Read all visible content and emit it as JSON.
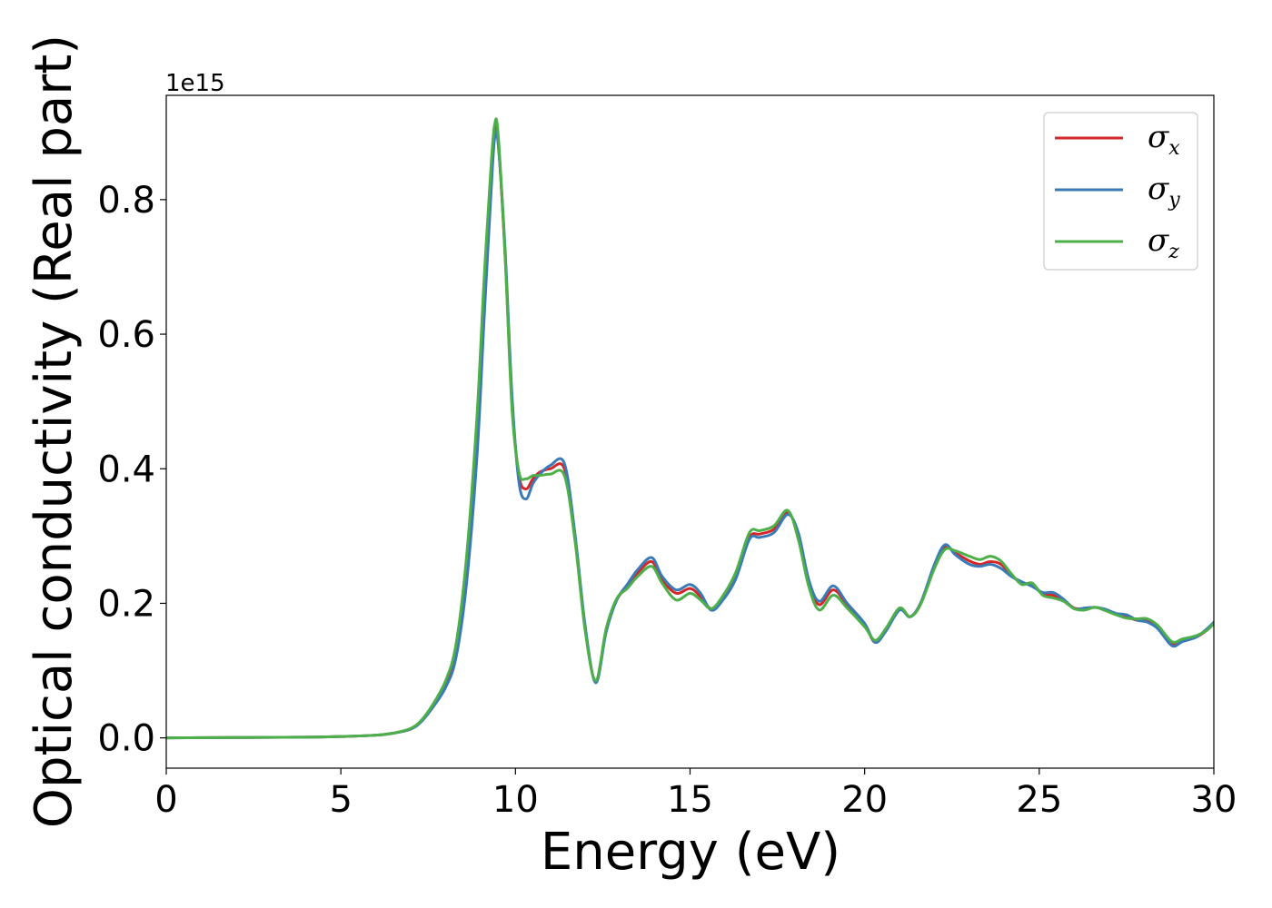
{
  "chart_data": {
    "type": "line",
    "xlabel": "Energy (eV)",
    "ylabel": "Optical conductivity (Real part)",
    "y_offset_label": "1e15",
    "xlim": [
      0,
      30
    ],
    "ylim": [
      -0.045,
      0.955
    ],
    "x_ticks": [
      0,
      5,
      10,
      15,
      20,
      25,
      30
    ],
    "x_tick_labels": [
      "0",
      "5",
      "10",
      "15",
      "20",
      "25",
      "30"
    ],
    "y_ticks": [
      0.0,
      0.2,
      0.4,
      0.6,
      0.8
    ],
    "y_tick_labels": [
      "0.0",
      "0.2",
      "0.4",
      "0.6",
      "0.8"
    ],
    "grid": false,
    "legend_position": "top-right",
    "x": [
      0,
      2,
      4,
      5,
      6,
      6.5,
      7,
      7.3,
      7.6,
      8,
      8.3,
      8.6,
      8.9,
      9.1,
      9.3,
      9.4,
      9.5,
      9.7,
      9.9,
      10.1,
      10.3,
      10.5,
      10.7,
      11,
      11.4,
      11.7,
      12,
      12.3,
      12.6,
      12.9,
      13.2,
      13.5,
      13.9,
      14.2,
      14.6,
      15,
      15.3,
      15.6,
      15.9,
      16.3,
      16.7,
      17,
      17.4,
      17.8,
      18.1,
      18.4,
      18.7,
      19.1,
      19.5,
      20,
      20.3,
      20.6,
      21,
      21.3,
      21.6,
      22,
      22.3,
      22.6,
      23,
      23.3,
      23.6,
      23.9,
      24.2,
      24.5,
      24.8,
      25.1,
      25.4,
      25.7,
      26,
      26.3,
      26.6,
      26.9,
      27.2,
      27.5,
      27.8,
      28.1,
      28.4,
      28.8,
      29.1,
      29.5,
      29.8,
      30
    ],
    "series": [
      {
        "name": "σx",
        "label_base": "σ",
        "label_sub": "x",
        "color": "#d62728",
        "values": [
          0,
          0.0005,
          0.001,
          0.002,
          0.004,
          0.007,
          0.013,
          0.025,
          0.045,
          0.08,
          0.13,
          0.25,
          0.45,
          0.65,
          0.83,
          0.9,
          0.89,
          0.72,
          0.5,
          0.39,
          0.37,
          0.385,
          0.395,
          0.4,
          0.4,
          0.3,
          0.16,
          0.085,
          0.16,
          0.205,
          0.225,
          0.245,
          0.262,
          0.235,
          0.215,
          0.222,
          0.21,
          0.192,
          0.205,
          0.24,
          0.298,
          0.303,
          0.31,
          0.335,
          0.3,
          0.23,
          0.198,
          0.22,
          0.198,
          0.168,
          0.142,
          0.16,
          0.192,
          0.18,
          0.2,
          0.255,
          0.284,
          0.275,
          0.263,
          0.258,
          0.262,
          0.258,
          0.242,
          0.23,
          0.228,
          0.214,
          0.212,
          0.205,
          0.193,
          0.192,
          0.194,
          0.19,
          0.184,
          0.18,
          0.175,
          0.175,
          0.165,
          0.14,
          0.145,
          0.15,
          0.16,
          0.17
        ]
      },
      {
        "name": "σy",
        "label_base": "σ",
        "label_sub": "y",
        "color": "#3a7ab8",
        "values": [
          0,
          0.0005,
          0.001,
          0.002,
          0.004,
          0.007,
          0.013,
          0.024,
          0.043,
          0.075,
          0.12,
          0.23,
          0.42,
          0.62,
          0.81,
          0.89,
          0.885,
          0.73,
          0.51,
          0.38,
          0.355,
          0.378,
          0.392,
          0.405,
          0.408,
          0.305,
          0.165,
          0.082,
          0.158,
          0.205,
          0.228,
          0.25,
          0.268,
          0.24,
          0.22,
          0.228,
          0.215,
          0.19,
          0.202,
          0.235,
          0.295,
          0.298,
          0.305,
          0.332,
          0.305,
          0.235,
          0.203,
          0.226,
          0.2,
          0.17,
          0.142,
          0.158,
          0.19,
          0.18,
          0.2,
          0.258,
          0.287,
          0.272,
          0.258,
          0.255,
          0.258,
          0.252,
          0.24,
          0.232,
          0.225,
          0.216,
          0.216,
          0.206,
          0.192,
          0.193,
          0.194,
          0.191,
          0.185,
          0.183,
          0.175,
          0.172,
          0.162,
          0.137,
          0.143,
          0.15,
          0.162,
          0.172
        ]
      },
      {
        "name": "σz",
        "label_base": "σ",
        "label_sub": "z",
        "color": "#4daf4a",
        "values": [
          0,
          0.0005,
          0.001,
          0.002,
          0.004,
          0.007,
          0.014,
          0.026,
          0.047,
          0.085,
          0.14,
          0.27,
          0.48,
          0.68,
          0.85,
          0.91,
          0.9,
          0.72,
          0.49,
          0.395,
          0.385,
          0.39,
          0.39,
          0.392,
          0.39,
          0.295,
          0.158,
          0.085,
          0.163,
          0.207,
          0.222,
          0.24,
          0.255,
          0.23,
          0.205,
          0.215,
          0.205,
          0.192,
          0.208,
          0.245,
          0.305,
          0.308,
          0.315,
          0.338,
          0.295,
          0.225,
          0.19,
          0.212,
          0.193,
          0.165,
          0.145,
          0.162,
          0.193,
          0.18,
          0.198,
          0.252,
          0.28,
          0.278,
          0.27,
          0.265,
          0.27,
          0.263,
          0.244,
          0.228,
          0.23,
          0.212,
          0.208,
          0.203,
          0.192,
          0.19,
          0.194,
          0.189,
          0.183,
          0.178,
          0.177,
          0.177,
          0.167,
          0.143,
          0.147,
          0.152,
          0.16,
          0.17
        ]
      }
    ]
  }
}
